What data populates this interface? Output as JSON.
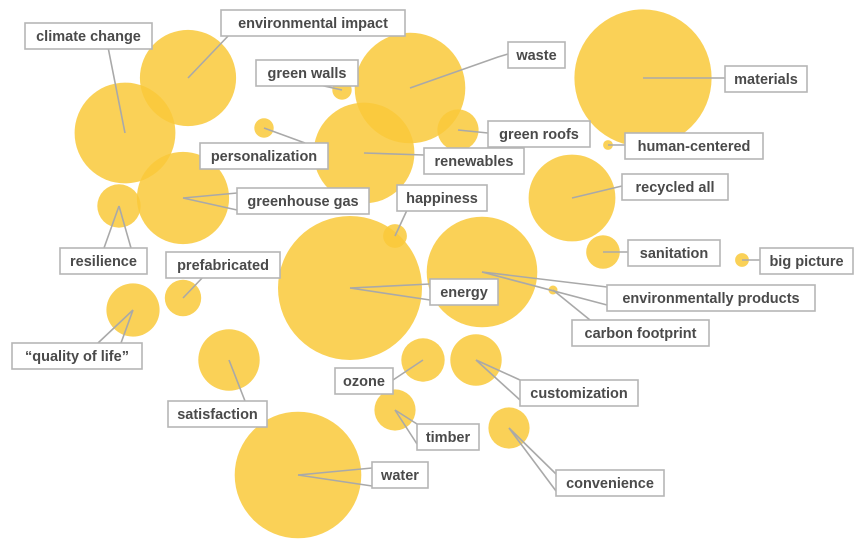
{
  "colors": {
    "bubble": "#f9c93a",
    "leader": "#a9a9a9",
    "label_border": "#b5b5b5",
    "label_text": "#4a4a4a"
  },
  "chart_data": {
    "type": "bubble",
    "title": "",
    "xlabel": "",
    "ylabel": "",
    "grid": false,
    "legend": "none",
    "series": [
      {
        "points": [
          {
            "label": "climate change",
            "size": 0.54
          },
          {
            "label": "environmental impact",
            "size": 0.49
          },
          {
            "label": "green walls",
            "size": 0.02
          },
          {
            "label": "waste",
            "size": 0.65
          },
          {
            "label": "materials",
            "size": 1.0
          },
          {
            "label": "green roofs",
            "size": 0.09
          },
          {
            "label": "personalization",
            "size": 0.02
          },
          {
            "label": "renewables",
            "size": 0.54
          },
          {
            "label": "human-centered",
            "size": 0.005
          },
          {
            "label": "resilience",
            "size": 0.1
          },
          {
            "label": "greenhouse gas",
            "size": 0.45
          },
          {
            "label": "happiness",
            "size": 0.03
          },
          {
            "label": "recycled all",
            "size": 0.4
          },
          {
            "label": "sanitation",
            "size": 0.06
          },
          {
            "label": "big picture",
            "size": 0.01
          },
          {
            "label": "prefabricated",
            "size": 0.07
          },
          {
            "label": "energy",
            "size": 1.1
          },
          {
            "label": "environmentally products",
            "size": 0.65
          },
          {
            "label": "carbon footprint",
            "size": 0.003
          },
          {
            "label": "“quality of life”",
            "size": 0.15
          },
          {
            "label": "ozone",
            "size": 0.1
          },
          {
            "label": "customization",
            "size": 0.14
          },
          {
            "label": "satisfaction",
            "size": 0.2
          },
          {
            "label": "timber",
            "size": 0.09
          },
          {
            "label": "convenience",
            "size": 0.09
          },
          {
            "label": "water",
            "size": 0.85
          }
        ]
      }
    ]
  }
}
